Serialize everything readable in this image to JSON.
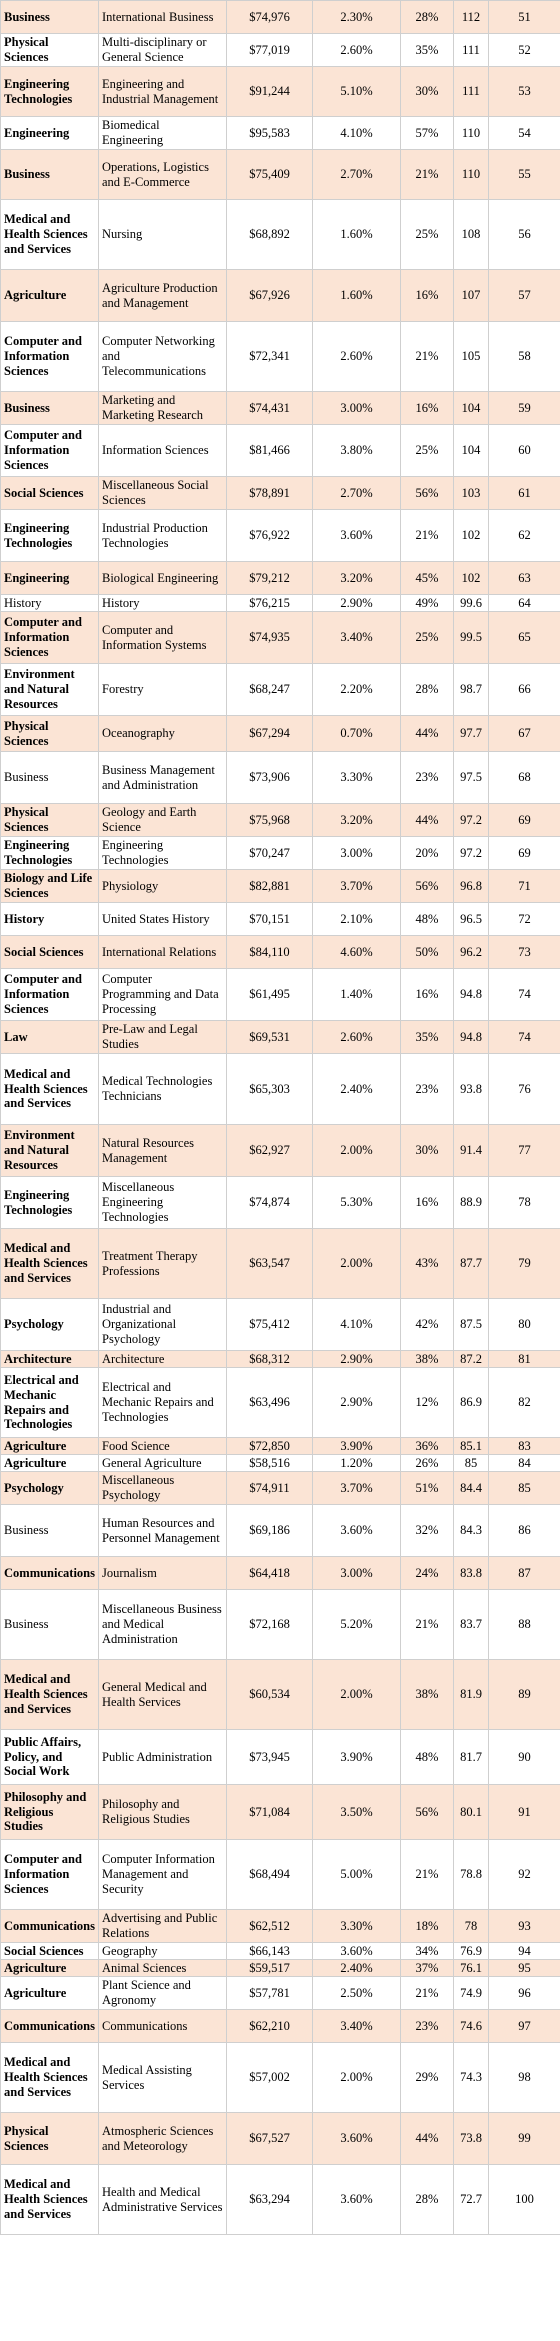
{
  "rows": [
    {
      "category": "Business",
      "major": "International Business",
      "salary": "$74,976",
      "unemployment": "2.30%",
      "pct": "28%",
      "score": "112",
      "rank": "51",
      "bold": true,
      "shaded": true,
      "h": 33
    },
    {
      "category": "Physical Sciences",
      "major": "Multi-disciplinary or General Science",
      "salary": "$77,019",
      "unemployment": "2.60%",
      "pct": "35%",
      "score": "111",
      "rank": "52",
      "bold": true,
      "shaded": false,
      "h": 33
    },
    {
      "category": "Engineering Technologies",
      "major": "Engineering and Industrial Management",
      "salary": "$91,244",
      "unemployment": "5.10%",
      "pct": "30%",
      "score": "111",
      "rank": "53",
      "bold": true,
      "shaded": true,
      "h": 50
    },
    {
      "category": "Engineering",
      "major": "Biomedical Engineering",
      "salary": "$95,583",
      "unemployment": "4.10%",
      "pct": "57%",
      "score": "110",
      "rank": "54",
      "bold": true,
      "shaded": false,
      "h": 33
    },
    {
      "category": "Business",
      "major": "Operations, Logistics and E-Commerce",
      "salary": "$75,409",
      "unemployment": "2.70%",
      "pct": "21%",
      "score": "110",
      "rank": "55",
      "bold": true,
      "shaded": true,
      "h": 50
    },
    {
      "category": "Medical and Health Sciences and Services",
      "major": "Nursing",
      "salary": "$68,892",
      "unemployment": "1.60%",
      "pct": "25%",
      "score": "108",
      "rank": "56",
      "bold": true,
      "shaded": false,
      "h": 70
    },
    {
      "category": "Agriculture",
      "major": "Agriculture Production and Management",
      "salary": "$67,926",
      "unemployment": "1.60%",
      "pct": "16%",
      "score": "107",
      "rank": "57",
      "bold": true,
      "shaded": true,
      "h": 52
    },
    {
      "category": "Computer and Information Sciences",
      "major": "Computer Networking and Telecommunications",
      "salary": "$72,341",
      "unemployment": "2.60%",
      "pct": "21%",
      "score": "105",
      "rank": "58",
      "bold": true,
      "shaded": false,
      "h": 70
    },
    {
      "category": "Business",
      "major": "Marketing and Marketing Research",
      "salary": "$74,431",
      "unemployment": "3.00%",
      "pct": "16%",
      "score": "104",
      "rank": "59",
      "bold": true,
      "shaded": true,
      "h": 33
    },
    {
      "category": "Computer and Information Sciences",
      "major": "Information Sciences",
      "salary": "$81,466",
      "unemployment": "3.80%",
      "pct": "25%",
      "score": "104",
      "rank": "60",
      "bold": true,
      "shaded": false,
      "h": 52
    },
    {
      "category": "Social Sciences",
      "major": "Miscellaneous Social Sciences",
      "salary": "$78,891",
      "unemployment": "2.70%",
      "pct": "56%",
      "score": "103",
      "rank": "61",
      "bold": true,
      "shaded": true,
      "h": 33
    },
    {
      "category": "Engineering Technologies",
      "major": "Industrial Production Technologies",
      "salary": "$76,922",
      "unemployment": "3.60%",
      "pct": "21%",
      "score": "102",
      "rank": "62",
      "bold": true,
      "shaded": false,
      "h": 52
    },
    {
      "category": "Engineering",
      "major": "Biological Engineering",
      "salary": "$79,212",
      "unemployment": "3.20%",
      "pct": "45%",
      "score": "102",
      "rank": "63",
      "bold": true,
      "shaded": true,
      "h": 33
    },
    {
      "category": "History",
      "major": "History",
      "salary": "$76,215",
      "unemployment": "2.90%",
      "pct": "49%",
      "score": "99.6",
      "rank": "64",
      "bold": false,
      "shaded": false,
      "h": 17
    },
    {
      "category": "Computer and Information Sciences",
      "major": "Computer and Information Systems",
      "salary": "$74,935",
      "unemployment": "3.40%",
      "pct": "25%",
      "score": "99.5",
      "rank": "65",
      "bold": true,
      "shaded": true,
      "h": 52
    },
    {
      "category": "Environment and Natural Resources",
      "major": "Forestry",
      "salary": "$68,247",
      "unemployment": "2.20%",
      "pct": "28%",
      "score": "98.7",
      "rank": "66",
      "bold": true,
      "shaded": false,
      "h": 52
    },
    {
      "category": "Physical Sciences",
      "major": "Oceanography",
      "salary": "$67,294",
      "unemployment": "0.70%",
      "pct": "44%",
      "score": "97.7",
      "rank": "67",
      "bold": true,
      "shaded": true,
      "h": 36
    },
    {
      "category": "Business",
      "major": "Business Management and Administration",
      "salary": "$73,906",
      "unemployment": "3.30%",
      "pct": "23%",
      "score": "97.5",
      "rank": "68",
      "bold": false,
      "shaded": false,
      "h": 52
    },
    {
      "category": "Physical Sciences",
      "major": "Geology and Earth Science",
      "salary": "$75,968",
      "unemployment": "3.20%",
      "pct": "44%",
      "score": "97.2",
      "rank": "69",
      "bold": true,
      "shaded": true,
      "h": 33
    },
    {
      "category": "Engineering Technologies",
      "major": "Engineering Technologies",
      "salary": "$70,247",
      "unemployment": "3.00%",
      "pct": "20%",
      "score": "97.2",
      "rank": "69",
      "bold": true,
      "shaded": false,
      "h": 33
    },
    {
      "category": "Biology and Life Sciences",
      "major": "Physiology",
      "salary": "$82,881",
      "unemployment": "3.70%",
      "pct": "56%",
      "score": "96.8",
      "rank": "71",
      "bold": true,
      "shaded": true,
      "h": 33
    },
    {
      "category": "History",
      "major": "United States History",
      "salary": "$70,151",
      "unemployment": "2.10%",
      "pct": "48%",
      "score": "96.5",
      "rank": "72",
      "bold": true,
      "shaded": false,
      "h": 33
    },
    {
      "category": "Social Sciences",
      "major": "International Relations",
      "salary": "$84,110",
      "unemployment": "4.60%",
      "pct": "50%",
      "score": "96.2",
      "rank": "73",
      "bold": true,
      "shaded": true,
      "h": 33
    },
    {
      "category": "Computer and Information Sciences",
      "major": "Computer Programming and Data Processing",
      "salary": "$61,495",
      "unemployment": "1.40%",
      "pct": "16%",
      "score": "94.8",
      "rank": "74",
      "bold": true,
      "shaded": false,
      "h": 52
    },
    {
      "category": "Law",
      "major": "Pre-Law and Legal Studies",
      "salary": "$69,531",
      "unemployment": "2.60%",
      "pct": "35%",
      "score": "94.8",
      "rank": "74",
      "bold": true,
      "shaded": true,
      "h": 33
    },
    {
      "category": "Medical and Health Sciences and Services",
      "major": "Medical Technologies Technicians",
      "salary": "$65,303",
      "unemployment": "2.40%",
      "pct": "23%",
      "score": "93.8",
      "rank": "76",
      "bold": true,
      "shaded": false,
      "h": 71
    },
    {
      "category": "Environment and Natural Resources",
      "major": "Natural Resources Management",
      "salary": "$62,927",
      "unemployment": "2.00%",
      "pct": "30%",
      "score": "91.4",
      "rank": "77",
      "bold": true,
      "shaded": true,
      "h": 52
    },
    {
      "category": "Engineering Technologies",
      "major": "Miscellaneous Engineering Technologies",
      "salary": "$74,874",
      "unemployment": "5.30%",
      "pct": "16%",
      "score": "88.9",
      "rank": "78",
      "bold": true,
      "shaded": false,
      "h": 52
    },
    {
      "category": "Medical and Health Sciences and Services",
      "major": "Treatment Therapy Professions",
      "salary": "$63,547",
      "unemployment": "2.00%",
      "pct": "43%",
      "score": "87.7",
      "rank": "79",
      "bold": true,
      "shaded": true,
      "h": 70
    },
    {
      "category": "Psychology",
      "major": "Industrial and Organizational Psychology",
      "salary": "$75,412",
      "unemployment": "4.10%",
      "pct": "42%",
      "score": "87.5",
      "rank": "80",
      "bold": true,
      "shaded": false,
      "h": 52
    },
    {
      "category": "Architecture",
      "major": "Architecture",
      "salary": "$68,312",
      "unemployment": "2.90%",
      "pct": "38%",
      "score": "87.2",
      "rank": "81",
      "bold": true,
      "shaded": true,
      "h": 17
    },
    {
      "category": "Electrical and Mechanic Repairs and Technologies",
      "major": "Electrical and Mechanic Repairs and Technologies",
      "salary": "$63,496",
      "unemployment": "2.90%",
      "pct": "12%",
      "score": "86.9",
      "rank": "82",
      "bold": true,
      "shaded": false,
      "h": 70
    },
    {
      "category": "Agriculture",
      "major": "Food Science",
      "salary": "$72,850",
      "unemployment": "3.90%",
      "pct": "36%",
      "score": "85.1",
      "rank": "83",
      "bold": true,
      "shaded": true,
      "h": 17
    },
    {
      "category": "Agriculture",
      "major": "General Agriculture",
      "salary": "$58,516",
      "unemployment": "1.20%",
      "pct": "26%",
      "score": "85",
      "rank": "84",
      "bold": true,
      "shaded": false,
      "h": 17
    },
    {
      "category": "Psychology",
      "major": "Miscellaneous Psychology",
      "salary": "$74,911",
      "unemployment": "3.70%",
      "pct": "51%",
      "score": "84.4",
      "rank": "85",
      "bold": true,
      "shaded": true,
      "h": 33
    },
    {
      "category": "Business",
      "major": "Human Resources and Personnel Management",
      "salary": "$69,186",
      "unemployment": "3.60%",
      "pct": "32%",
      "score": "84.3",
      "rank": "86",
      "bold": false,
      "shaded": false,
      "h": 52
    },
    {
      "category": "Communications",
      "major": "Journalism",
      "salary": "$64,418",
      "unemployment": "3.00%",
      "pct": "24%",
      "score": "83.8",
      "rank": "87",
      "bold": true,
      "shaded": true,
      "h": 33
    },
    {
      "category": "Business",
      "major": "Miscellaneous Business and Medical Administration",
      "salary": "$72,168",
      "unemployment": "5.20%",
      "pct": "21%",
      "score": "83.7",
      "rank": "88",
      "bold": false,
      "shaded": false,
      "h": 70
    },
    {
      "category": "Medical and Health Sciences and Services",
      "major": "General Medical and Health Services",
      "salary": "$60,534",
      "unemployment": "2.00%",
      "pct": "38%",
      "score": "81.9",
      "rank": "89",
      "bold": true,
      "shaded": true,
      "h": 70
    },
    {
      "category": "Public Affairs, Policy, and Social Work",
      "major": "Public Administration",
      "salary": "$73,945",
      "unemployment": "3.90%",
      "pct": "48%",
      "score": "81.7",
      "rank": "90",
      "bold": true,
      "shaded": false,
      "h": 55
    },
    {
      "category": "Philosophy and Religious Studies",
      "major": "Philosophy and Religious Studies",
      "salary": "$71,084",
      "unemployment": "3.50%",
      "pct": "56%",
      "score": "80.1",
      "rank": "91",
      "bold": true,
      "shaded": true,
      "h": 55
    },
    {
      "category": "Computer and Information Sciences",
      "major": "Computer Information Management and Security",
      "salary": "$68,494",
      "unemployment": "5.00%",
      "pct": "21%",
      "score": "78.8",
      "rank": "92",
      "bold": true,
      "shaded": false,
      "h": 70
    },
    {
      "category": "Communications",
      "major": "Advertising and Public Relations",
      "salary": "$62,512",
      "unemployment": "3.30%",
      "pct": "18%",
      "score": "78",
      "rank": "93",
      "bold": true,
      "shaded": true,
      "h": 33
    },
    {
      "category": "Social Sciences",
      "major": "Geography",
      "salary": "$66,143",
      "unemployment": "3.60%",
      "pct": "34%",
      "score": "76.9",
      "rank": "94",
      "bold": true,
      "shaded": false,
      "h": 17
    },
    {
      "category": "Agriculture",
      "major": "Animal Sciences",
      "salary": "$59,517",
      "unemployment": "2.40%",
      "pct": "37%",
      "score": "76.1",
      "rank": "95",
      "bold": true,
      "shaded": true,
      "h": 17
    },
    {
      "category": "Agriculture",
      "major": "Plant Science and Agronomy",
      "salary": "$57,781",
      "unemployment": "2.50%",
      "pct": "21%",
      "score": "74.9",
      "rank": "96",
      "bold": true,
      "shaded": false,
      "h": 33
    },
    {
      "category": "Communications",
      "major": "Communications",
      "salary": "$62,210",
      "unemployment": "3.40%",
      "pct": "23%",
      "score": "74.6",
      "rank": "97",
      "bold": true,
      "shaded": true,
      "h": 33
    },
    {
      "category": "Medical and Health Sciences and Services",
      "major": "Medical Assisting Services",
      "salary": "$57,002",
      "unemployment": "2.00%",
      "pct": "29%",
      "score": "74.3",
      "rank": "98",
      "bold": true,
      "shaded": false,
      "h": 70
    },
    {
      "category": "Physical Sciences",
      "major": "Atmospheric Sciences and Meteorology",
      "salary": "$67,527",
      "unemployment": "3.60%",
      "pct": "44%",
      "score": "73.8",
      "rank": "99",
      "bold": true,
      "shaded": true,
      "h": 52
    },
    {
      "category": "Medical and Health Sciences and Services",
      "major": "Health and Medical Administrative Services",
      "salary": "$63,294",
      "unemployment": "3.60%",
      "pct": "28%",
      "score": "72.7",
      "rank": "100",
      "bold": true,
      "shaded": false,
      "h": 70
    }
  ]
}
